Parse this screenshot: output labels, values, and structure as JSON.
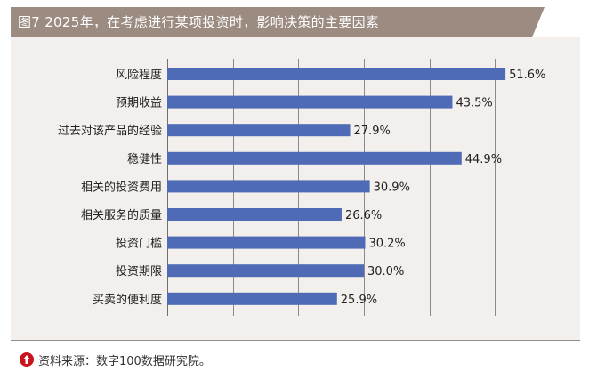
{
  "figure": {
    "title": "图7   2025年，在考虑进行某项投资时，影响决策的主要因素",
    "source": "资料来源：数字100数据研究院。",
    "icon": "up-arrow-circle-icon",
    "colors": {
      "title_bg": "#9b8b80",
      "panel_bg": "#f2efed",
      "bar": "#4f6bb5",
      "icon": "#c8141e"
    }
  },
  "chart_data": {
    "type": "bar",
    "orientation": "horizontal",
    "title": "2025年，在考虑进行某项投资时，影响决策的主要因素",
    "categories": [
      "风险程度",
      "预期收益",
      "过去对该产品的经验",
      "稳健性",
      "相关的投资费用",
      "相关服务的质量",
      "投资门槛",
      "投资期限",
      "买卖的便利度"
    ],
    "values": [
      51.6,
      43.5,
      27.9,
      44.9,
      30.9,
      26.6,
      30.2,
      30.0,
      25.9
    ],
    "value_labels": [
      "51.6%",
      "43.5%",
      "27.9%",
      "44.9%",
      "30.9%",
      "26.6%",
      "30.2%",
      "30.0%",
      "25.9%"
    ],
    "unit": "%",
    "xlim": [
      0,
      60
    ],
    "grid": true,
    "legend": "none"
  }
}
